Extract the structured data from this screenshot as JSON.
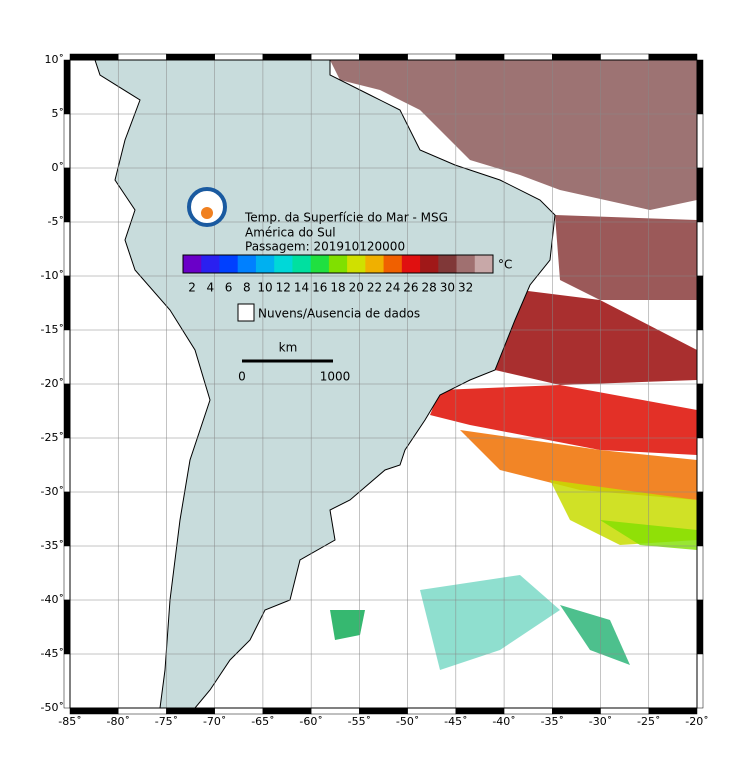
{
  "legend": {
    "title_lines": [
      "Temp. da Superfície do Mar - MSG",
      "América do Sul",
      "Passagem: 201910120000"
    ],
    "unit": "°C",
    "clouds": "Nuvens/Ausencia de dados"
  },
  "colorbar": {
    "colors": [
      "#6a00c8",
      "#2a20f0",
      "#0040ff",
      "#0080ff",
      "#00b0f0",
      "#00d8d8",
      "#00e0a0",
      "#20e040",
      "#80e000",
      "#d0e000",
      "#f0b000",
      "#f06000",
      "#e01010",
      "#a01818",
      "#803838",
      "#a07070",
      "#c8a8a8"
    ],
    "ticks": [
      2,
      4,
      6,
      8,
      10,
      12,
      14,
      16,
      18,
      20,
      22,
      24,
      26,
      28,
      30,
      32
    ]
  },
  "scale_bar": {
    "unit": "km",
    "ticks": [
      0,
      1000
    ]
  },
  "axes": {
    "lon_ticks": [
      {
        "value": -85,
        "label": "-85˚"
      },
      {
        "value": -80,
        "label": "-80˚"
      },
      {
        "value": -75,
        "label": "-75˚"
      },
      {
        "value": -70,
        "label": "-70˚"
      },
      {
        "value": -65,
        "label": "-65˚"
      },
      {
        "value": -60,
        "label": "-60˚"
      },
      {
        "value": -55,
        "label": "-55˚"
      },
      {
        "value": -50,
        "label": "-50˚"
      },
      {
        "value": -45,
        "label": "-45˚"
      },
      {
        "value": -40,
        "label": "-40˚"
      },
      {
        "value": -35,
        "label": "-35˚"
      },
      {
        "value": -30,
        "label": "-30˚"
      },
      {
        "value": -25,
        "label": "-25˚"
      },
      {
        "value": -20,
        "label": "-20˚"
      }
    ],
    "lat_ticks": [
      {
        "value": 10,
        "label": "10˚"
      },
      {
        "value": 5,
        "label": "5˚"
      },
      {
        "value": 0,
        "label": "0˚"
      },
      {
        "value": -5,
        "label": "-5˚"
      },
      {
        "value": -10,
        "label": "-10˚"
      },
      {
        "value": -15,
        "label": "-15˚"
      },
      {
        "value": -20,
        "label": "-20˚"
      },
      {
        "value": -25,
        "label": "-25˚"
      },
      {
        "value": -30,
        "label": "-30˚"
      },
      {
        "value": -35,
        "label": "-35˚"
      },
      {
        "value": -40,
        "label": "-40˚"
      },
      {
        "value": -45,
        "label": "-45˚"
      },
      {
        "value": -50,
        "label": "-50˚"
      }
    ]
  }
}
